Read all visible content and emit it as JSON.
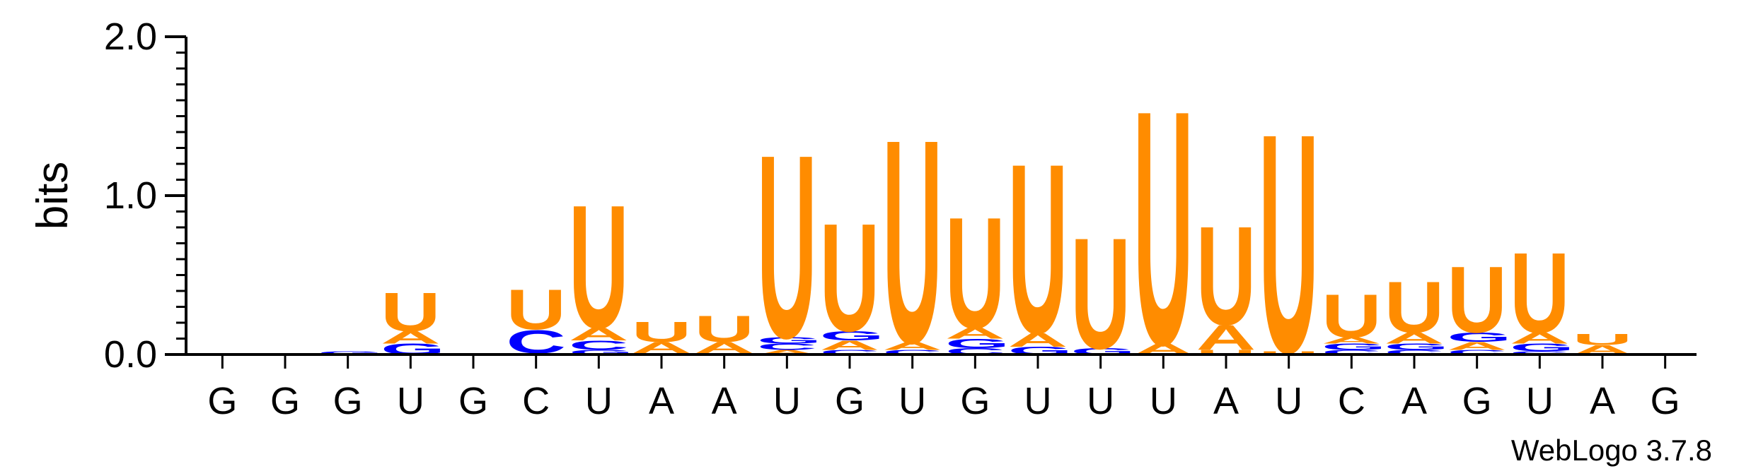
{
  "chart_data": {
    "type": "sequence-logo",
    "ylabel": "bits",
    "ylim": [
      0,
      2.0
    ],
    "yticks": [
      "0.0",
      "1.0",
      "2.0"
    ],
    "positions": [
      "G",
      "G",
      "G",
      "U",
      "G",
      "C",
      "U",
      "A",
      "A",
      "U",
      "G",
      "U",
      "G",
      "U",
      "U",
      "U",
      "A",
      "U",
      "C",
      "A",
      "G",
      "U",
      "A",
      "G"
    ],
    "colors": {
      "U": "#ff8c00",
      "A": "#ff8c00",
      "C": "#0000ff",
      "G": "#0000ff"
    },
    "columns": [
      [
        [
          "G",
          0.01
        ]
      ],
      [
        [
          "G",
          0.01
        ]
      ],
      [
        [
          "G",
          0.02
        ]
      ],
      [
        [
          "G",
          0.07
        ],
        [
          "A",
          0.08
        ],
        [
          "U",
          0.25
        ]
      ],
      [],
      [
        [
          "G",
          0.01
        ],
        [
          "C",
          0.15
        ],
        [
          "U",
          0.26
        ]
      ],
      [
        [
          "G",
          0.03
        ],
        [
          "C",
          0.06
        ],
        [
          "A",
          0.08
        ],
        [
          "U",
          0.8
        ]
      ],
      [
        [
          "C",
          0.01
        ],
        [
          "A",
          0.07
        ],
        [
          "U",
          0.13
        ]
      ],
      [
        [
          "C",
          0.01
        ],
        [
          "A",
          0.07
        ],
        [
          "U",
          0.17
        ]
      ],
      [
        [
          "A",
          0.03
        ],
        [
          "C",
          0.04
        ],
        [
          "G",
          0.04
        ],
        [
          "U",
          1.19
        ]
      ],
      [
        [
          "C",
          0.03
        ],
        [
          "A",
          0.06
        ],
        [
          "G",
          0.06
        ],
        [
          "U",
          0.7
        ]
      ],
      [
        [
          "C",
          0.03
        ],
        [
          "A",
          0.05
        ],
        [
          "U",
          1.32
        ]
      ],
      [
        [
          "C",
          0.04
        ],
        [
          "G",
          0.06
        ],
        [
          "A",
          0.07
        ],
        [
          "U",
          0.72
        ]
      ],
      [
        [
          "G",
          0.05
        ],
        [
          "A",
          0.09
        ],
        [
          "U",
          1.1
        ]
      ],
      [
        [
          "G",
          0.04
        ],
        [
          "U",
          0.72
        ]
      ],
      [
        [
          "A",
          0.07
        ],
        [
          "U",
          1.52
        ]
      ],
      [
        [
          "U",
          0.03
        ],
        [
          "A",
          0.16
        ],
        [
          "U",
          0.64
        ]
      ],
      [
        [
          "U",
          0.02
        ],
        [
          "U",
          1.42
        ]
      ],
      [
        [
          "C",
          0.03
        ],
        [
          "G",
          0.04
        ],
        [
          "A",
          0.04
        ],
        [
          "U",
          0.28
        ]
      ],
      [
        [
          "C",
          0.03
        ],
        [
          "G",
          0.04
        ],
        [
          "A",
          0.07
        ],
        [
          "U",
          0.33
        ]
      ],
      [
        [
          "C",
          0.03
        ],
        [
          "A",
          0.05
        ],
        [
          "G",
          0.06
        ],
        [
          "U",
          0.43
        ]
      ],
      [
        [
          "C",
          0.02
        ],
        [
          "G",
          0.05
        ],
        [
          "A",
          0.07
        ],
        [
          "U",
          0.52
        ]
      ],
      [
        [
          "A",
          0.06
        ],
        [
          "U",
          0.07
        ]
      ],
      []
    ]
  },
  "footer": "WebLogo 3.7.8"
}
